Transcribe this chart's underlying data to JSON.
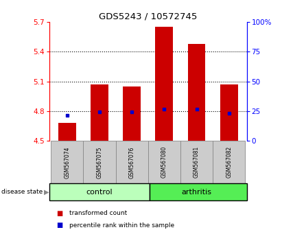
{
  "title": "GDS5243 / 10572745",
  "samples": [
    "GSM567074",
    "GSM567075",
    "GSM567076",
    "GSM567080",
    "GSM567081",
    "GSM567082"
  ],
  "groups": [
    "control",
    "control",
    "control",
    "arthritis",
    "arthritis",
    "arthritis"
  ],
  "bar_bottom": 4.5,
  "bar_tops": [
    4.68,
    5.07,
    5.05,
    5.65,
    5.48,
    5.07
  ],
  "percentile_values": [
    4.76,
    4.79,
    4.79,
    4.82,
    4.82,
    4.78
  ],
  "ylim_left": [
    4.5,
    5.7
  ],
  "ylim_right": [
    0,
    100
  ],
  "yticks_left": [
    4.5,
    4.8,
    5.1,
    5.4,
    5.7
  ],
  "yticks_right": [
    0,
    25,
    50,
    75,
    100
  ],
  "ytick_labels_right": [
    "0",
    "25",
    "50",
    "75",
    "100%"
  ],
  "bar_color": "#cc0000",
  "percentile_color": "#0000cc",
  "control_color": "#bbffbb",
  "arthritis_color": "#55ee55",
  "sample_label_bg": "#cccccc",
  "bar_width": 0.55,
  "disease_label": "disease state"
}
